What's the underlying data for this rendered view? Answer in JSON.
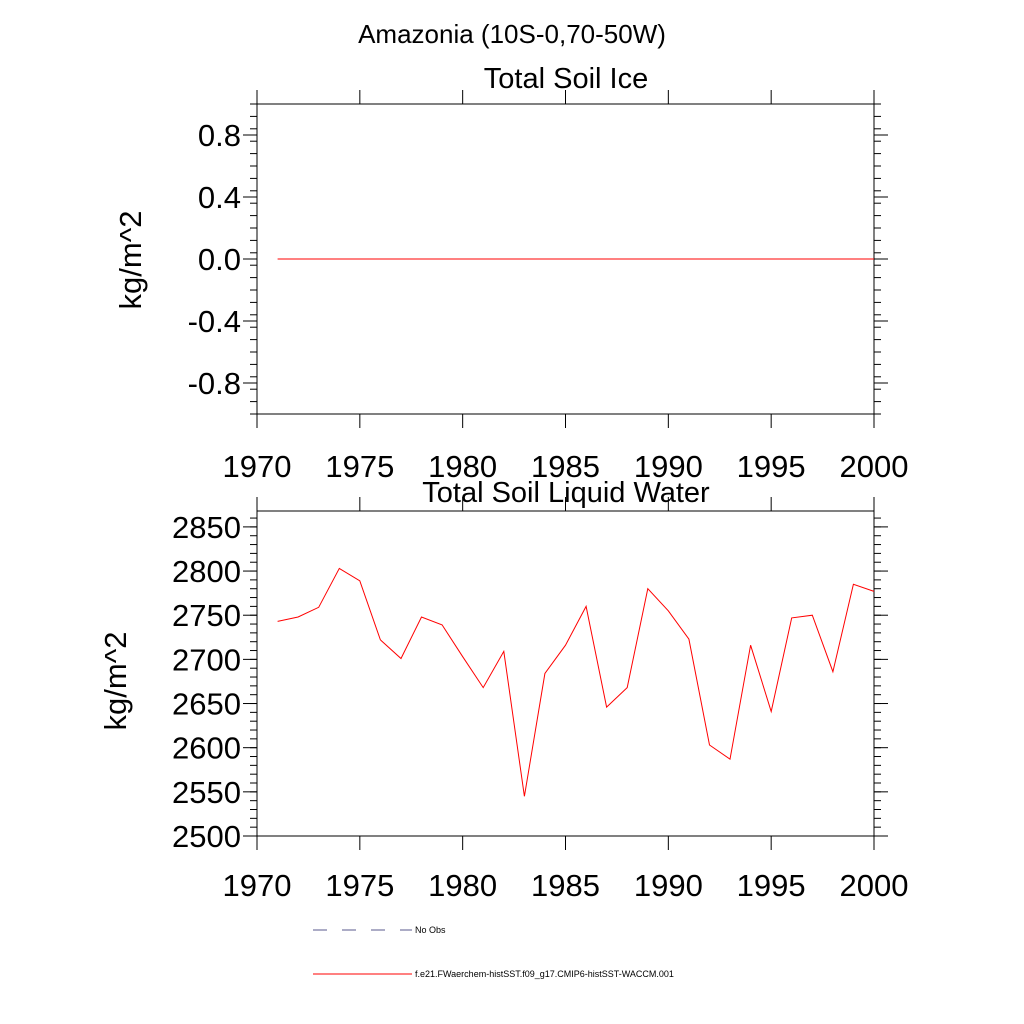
{
  "figure": {
    "title": "Amazonia (10S-0,70-50W)"
  },
  "chart_data": [
    {
      "type": "line",
      "title": "Total Soil Ice",
      "xlabel": "",
      "ylabel": "kg/m^2",
      "xlim": [
        1970,
        2000
      ],
      "ylim": [
        -1.0,
        1.0
      ],
      "xticks": [
        1970,
        1975,
        1980,
        1985,
        1990,
        1995,
        2000
      ],
      "yticks": [
        -0.8,
        -0.4,
        0.0,
        0.4,
        0.8
      ],
      "ytick_labels": [
        "-0.8",
        "-0.4",
        "0.0",
        "0.4",
        "0.8"
      ],
      "series": [
        {
          "name": "f.e21.FWaerchem-histSST.f09_g17.CMIP6-histSST-WACCM.001",
          "color": "#ff0000",
          "x": [
            1971,
            1972,
            1973,
            1974,
            1975,
            1976,
            1977,
            1978,
            1979,
            1980,
            1981,
            1982,
            1983,
            1984,
            1985,
            1986,
            1987,
            1988,
            1989,
            1990,
            1991,
            1992,
            1993,
            1994,
            1995,
            1996,
            1997,
            1998,
            1999,
            2000
          ],
          "values": [
            0,
            0,
            0,
            0,
            0,
            0,
            0,
            0,
            0,
            0,
            0,
            0,
            0,
            0,
            0,
            0,
            0,
            0,
            0,
            0,
            0,
            0,
            0,
            0,
            0,
            0,
            0,
            0,
            0,
            0
          ]
        }
      ]
    },
    {
      "type": "line",
      "title": "Total Soil Liquid Water",
      "xlabel": "",
      "ylabel": "kg/m^2",
      "xlim": [
        1970,
        2000
      ],
      "ylim": [
        2500,
        2868
      ],
      "xticks": [
        1970,
        1975,
        1980,
        1985,
        1990,
        1995,
        2000
      ],
      "yticks": [
        2500,
        2550,
        2600,
        2650,
        2700,
        2750,
        2800,
        2850
      ],
      "ytick_labels": [
        "2500",
        "2550",
        "2600",
        "2650",
        "2700",
        "2750",
        "2800",
        "2850"
      ],
      "series": [
        {
          "name": "f.e21.FWaerchem-histSST.f09_g17.CMIP6-histSST-WACCM.001",
          "color": "#ff0000",
          "x": [
            1971,
            1972,
            1973,
            1974,
            1975,
            1976,
            1977,
            1978,
            1979,
            1980,
            1981,
            1982,
            1983,
            1984,
            1985,
            1986,
            1987,
            1988,
            1989,
            1990,
            1991,
            1992,
            1993,
            1994,
            1995,
            1996,
            1997,
            1998,
            1999,
            2000
          ],
          "values": [
            2743,
            2748,
            2759,
            2803,
            2789,
            2722,
            2701,
            2748,
            2739,
            2703,
            2668,
            2709,
            2545,
            2684,
            2716,
            2760,
            2646,
            2668,
            2780,
            2755,
            2723,
            2603,
            2587,
            2716,
            2641,
            2747,
            2750,
            2686,
            2785,
            2777
          ]
        }
      ]
    }
  ],
  "legend": {
    "items": [
      {
        "label": "No Obs",
        "color": "#5a5a8c",
        "style": "dashed"
      },
      {
        "label": "f.e21.FWaerchem-histSST.f09_g17.CMIP6-histSST-WACCM.001",
        "color": "#ff0000",
        "style": "solid"
      }
    ]
  }
}
